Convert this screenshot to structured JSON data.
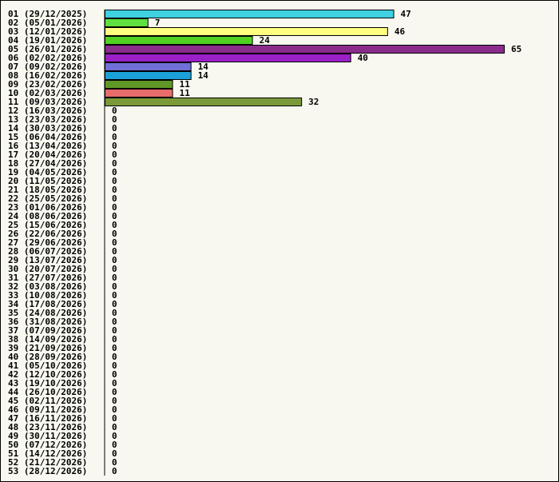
{
  "chart_data": {
    "type": "bar",
    "orientation": "horizontal",
    "title": "",
    "xlabel": "",
    "ylabel": "",
    "xlim": [
      0,
      65
    ],
    "grid": false,
    "categories": [
      "01 (29/12/2025)",
      "02 (05/01/2026)",
      "03 (12/01/2026)",
      "04 (19/01/2026)",
      "05 (26/01/2026)",
      "06 (02/02/2026)",
      "07 (09/02/2026)",
      "08 (16/02/2026)",
      "09 (23/02/2026)",
      "10 (02/03/2026)",
      "11 (09/03/2026)",
      "12 (16/03/2026)",
      "13 (23/03/2026)",
      "14 (30/03/2026)",
      "15 (06/04/2026)",
      "16 (13/04/2026)",
      "17 (20/04/2026)",
      "18 (27/04/2026)",
      "19 (04/05/2026)",
      "20 (11/05/2026)",
      "21 (18/05/2026)",
      "22 (25/05/2026)",
      "23 (01/06/2026)",
      "24 (08/06/2026)",
      "25 (15/06/2026)",
      "26 (22/06/2026)",
      "27 (29/06/2026)",
      "28 (06/07/2026)",
      "29 (13/07/2026)",
      "30 (20/07/2026)",
      "31 (27/07/2026)",
      "32 (03/08/2026)",
      "33 (10/08/2026)",
      "34 (17/08/2026)",
      "35 (24/08/2026)",
      "36 (31/08/2026)",
      "37 (07/09/2026)",
      "38 (14/09/2026)",
      "39 (21/09/2026)",
      "40 (28/09/2026)",
      "41 (05/10/2026)",
      "42 (12/10/2026)",
      "43 (19/10/2026)",
      "44 (26/10/2026)",
      "45 (02/11/2026)",
      "46 (09/11/2026)",
      "47 (16/11/2026)",
      "48 (23/11/2026)",
      "49 (30/11/2026)",
      "50 (07/12/2026)",
      "51 (14/12/2026)",
      "52 (21/12/2026)",
      "53 (28/12/2026)"
    ],
    "values": [
      47,
      7,
      46,
      24,
      65,
      40,
      14,
      14,
      11,
      11,
      32,
      0,
      0,
      0,
      0,
      0,
      0,
      0,
      0,
      0,
      0,
      0,
      0,
      0,
      0,
      0,
      0,
      0,
      0,
      0,
      0,
      0,
      0,
      0,
      0,
      0,
      0,
      0,
      0,
      0,
      0,
      0,
      0,
      0,
      0,
      0,
      0,
      0,
      0,
      0,
      0,
      0,
      0
    ],
    "colors": [
      "#40d0e0",
      "#60e040",
      "#ffff80",
      "#50d020",
      "#8b2b8b",
      "#9b20c8",
      "#7070d8",
      "#1ca0d8",
      "#609828",
      "#e86c6c",
      "#7a9a3a"
    ]
  }
}
